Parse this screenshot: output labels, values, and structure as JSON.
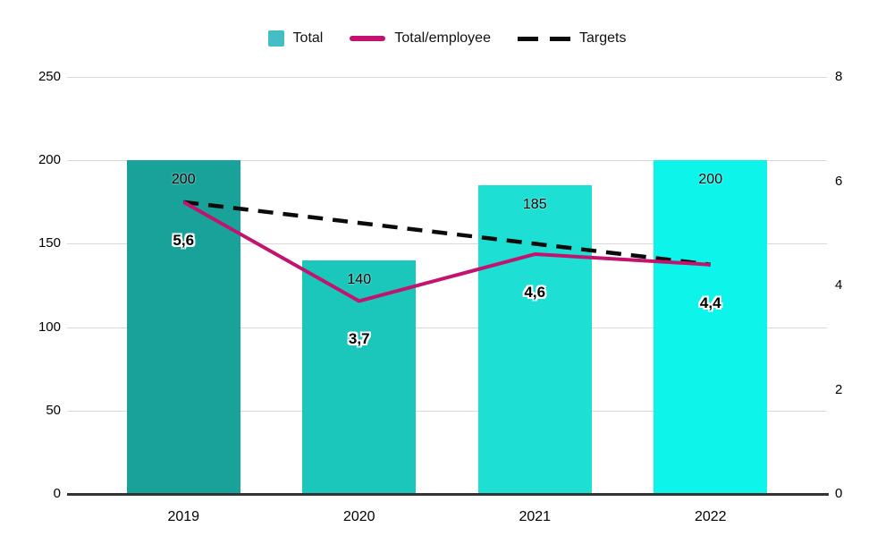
{
  "colors": {
    "bar_2019": "#18a29a",
    "bar_2020": "#1bc6bb",
    "bar_2021": "#1edfd4",
    "bar_2022": "#0df4eb",
    "legend_total_swatch": "#45bdc6",
    "line_total_employee": "#c2146e",
    "line_targets": "#0b0b0b",
    "gridline": "#d9d9d9",
    "axis": "#333333"
  },
  "legend": {
    "items": [
      {
        "label": "Total",
        "swatch": "square"
      },
      {
        "label": "Total/employee",
        "swatch": "line"
      },
      {
        "label": "Targets",
        "swatch": "dashes"
      }
    ]
  },
  "chart_data": {
    "type": "bar",
    "subtype": "combo-bar-line",
    "title": "",
    "categories": [
      "2019",
      "2020",
      "2021",
      "2022"
    ],
    "series": [
      {
        "name": "Total",
        "type": "bar",
        "axis": "left",
        "values": [
          200,
          140,
          185,
          200
        ],
        "labels": [
          "200",
          "140",
          "185",
          "200"
        ],
        "point_colors": [
          "#18a29a",
          "#1bc6bb",
          "#1edfd4",
          "#0df4eb"
        ]
      },
      {
        "name": "Total/employee",
        "type": "line",
        "axis": "right",
        "values": [
          5.6,
          3.7,
          4.6,
          4.4
        ],
        "labels": [
          "5,6",
          "3,7",
          "4,6",
          "4,4"
        ],
        "color": "#c2146e"
      },
      {
        "name": "Targets",
        "type": "dashed-line",
        "axis": "right",
        "values": [
          5.6,
          5.2,
          4.8,
          4.4
        ],
        "labels": [],
        "color": "#0b0b0b"
      }
    ],
    "left_axis": {
      "min": 0,
      "max": 250,
      "ticks": [
        "0",
        "50",
        "100",
        "150",
        "200",
        "250"
      ]
    },
    "right_axis": {
      "min": 0,
      "max": 8,
      "ticks": [
        "0",
        "2",
        "4",
        "6",
        "8"
      ]
    },
    "grid": true,
    "legend_position": "top"
  }
}
